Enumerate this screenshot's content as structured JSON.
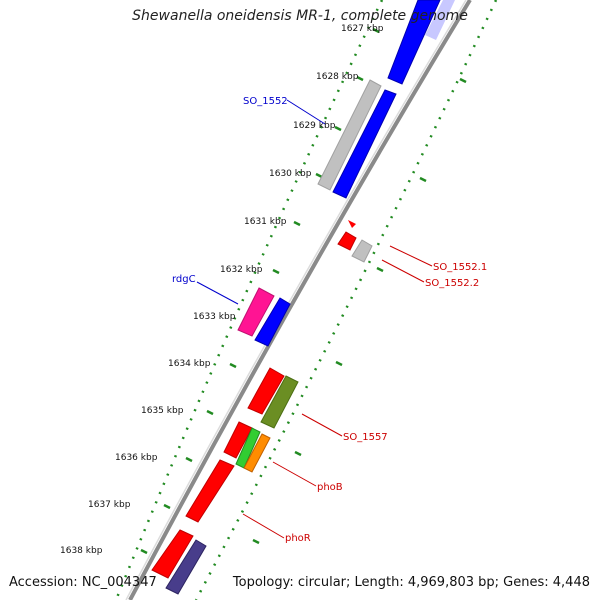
{
  "title": "Shewanella oneidensis MR-1, complete genome",
  "accession": "Accession: NC_004347",
  "topology": "Topology: circular; Length: 4,969,803 bp; Genes: 4,448",
  "ticks": [
    "1627 kbp",
    "1628 kbp",
    "1629 kbp",
    "1630 kbp",
    "1631 kbp",
    "1632 kbp",
    "1633 kbp",
    "1634 kbp",
    "1635 kbp",
    "1636 kbp",
    "1637 kbp",
    "1638 kbp"
  ],
  "gene_labels": [
    "SO_1552",
    "rdgC",
    "SO_1552.1",
    "SO_1552.2",
    "SO_1557",
    "phoB",
    "phoR"
  ],
  "colors": {
    "backbone": "#8a8a8a",
    "tick_ring": "#228b22",
    "blue_gene": "#0000ff",
    "red_gene": "#ff0000",
    "gray_gene": "#c0c0c0",
    "magenta_gene": "#ff1493",
    "olive_gene": "#6b8e23",
    "green_gene": "#32cd32",
    "orange_gene": "#ff8c00",
    "navy_gene": "#483d8b",
    "blue_label": "#0000cc",
    "red_label": "#cc0000"
  }
}
